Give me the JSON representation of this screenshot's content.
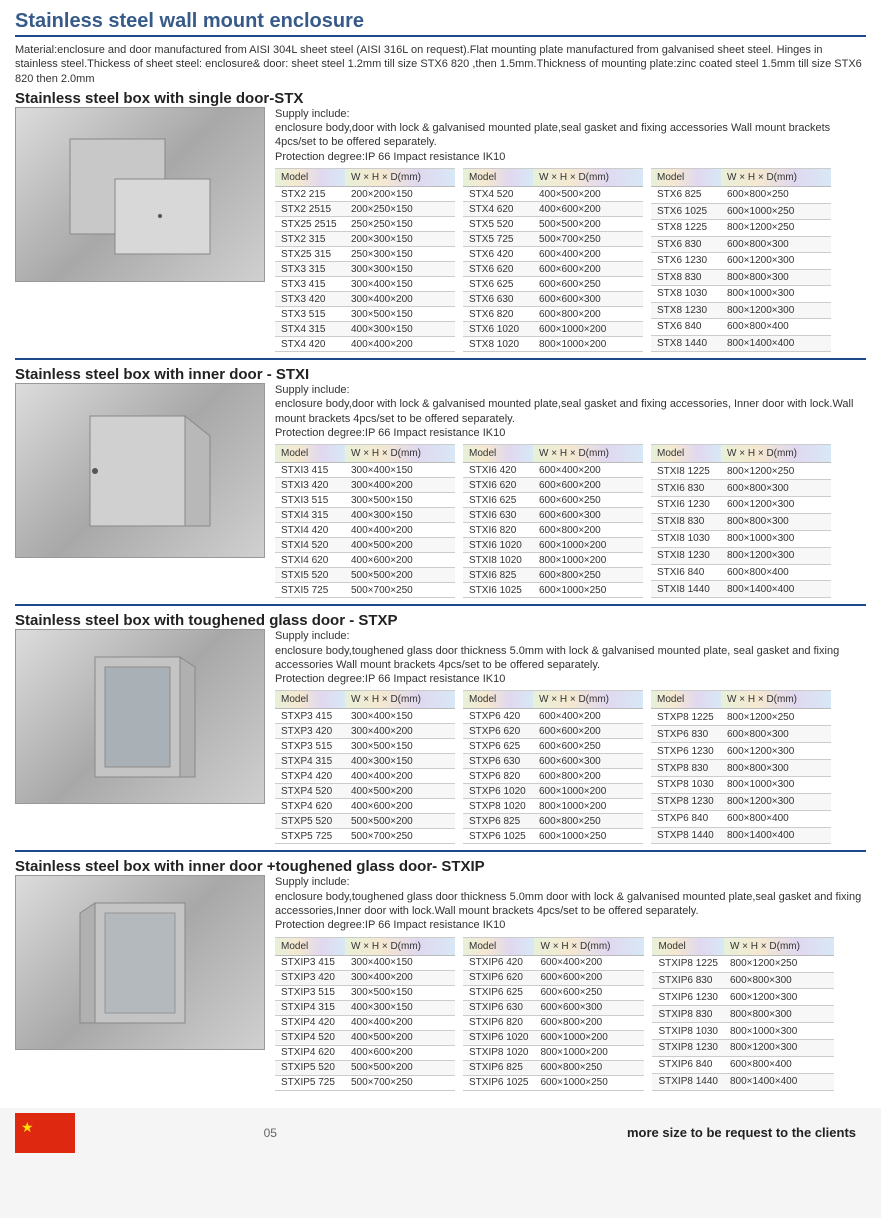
{
  "title": "Stainless steel wall mount enclosure",
  "material": "Material:enclosure and door manufactured from AISI 304L sheet steel (AISI 316L on request).Flat mounting plate manufactured from galvanised sheet  steel. Hinges in stainless steel.Thickess of sheet steel: enclosure& door: sheet steel 1.2mm till size STX6 820 ,then 1.5mm.Thickness of mounting plate:zinc coated steel 1.5mm till size STX6 820 then 2.0mm",
  "page_num": "05",
  "more_size": "more size  to be request to the clients",
  "table_headers": {
    "model": "Model",
    "dim": "W  ×  H  ×  D(mm)"
  },
  "sections": [
    {
      "title": "Stainless steel box with single door-STX",
      "supply": "Supply include:\nenclosure body,door with lock & galvanised mounted plate,seal gasket and fixing accessories Wall mount brackets 4pcs/set  to be offered separately.\nProtection degree:IP 66    Impact resistance IK10",
      "tables": [
        [
          [
            "STX2 215",
            "200×200×150"
          ],
          [
            "STX2 2515",
            "200×250×150"
          ],
          [
            "STX25 2515",
            "250×250×150"
          ],
          [
            "STX2 315",
            "200×300×150"
          ],
          [
            "STX25 315",
            "250×300×150"
          ],
          [
            "STX3 315",
            "300×300×150"
          ],
          [
            "STX3 415",
            "300×400×150"
          ],
          [
            "STX3 420",
            "300×400×200"
          ],
          [
            "STX3 515",
            "300×500×150"
          ],
          [
            "STX4 315",
            "400×300×150"
          ],
          [
            "STX4 420",
            "400×400×200"
          ]
        ],
        [
          [
            "STX4 520",
            "400×500×200"
          ],
          [
            "STX4 620",
            "400×600×200"
          ],
          [
            "STX5 520",
            "500×500×200"
          ],
          [
            "STX5 725",
            "500×700×250"
          ],
          [
            "STX6 420",
            "600×400×200"
          ],
          [
            "STX6 620",
            "600×600×200"
          ],
          [
            "STX6 625",
            "600×600×250"
          ],
          [
            "STX6 630",
            "600×600×300"
          ],
          [
            "STX6 820",
            "600×800×200"
          ],
          [
            "STX6 1020",
            "600×1000×200"
          ],
          [
            "STX8 1020",
            "800×1000×200"
          ]
        ],
        [
          [
            "STX6 825",
            "600×800×250"
          ],
          [
            "STX6 1025",
            "600×1000×250"
          ],
          [
            "STX8 1225",
            "800×1200×250"
          ],
          [
            "STX6 830",
            "600×800×300"
          ],
          [
            "STX6 1230",
            "600×1200×300"
          ],
          [
            "STX8 830",
            "800×800×300"
          ],
          [
            "STX8 1030",
            "800×1000×300"
          ],
          [
            "STX8 1230",
            "800×1200×300"
          ],
          [
            "STX6 840",
            "600×800×400"
          ],
          [
            "STX8 1440",
            "800×1400×400"
          ]
        ]
      ]
    },
    {
      "title": "Stainless steel box with inner door - STXI",
      "supply": "Supply include:\nenclosure body,door with lock & galvanised mounted plate,seal gasket and fixing accessories, Inner door with lock.Wall mount brackets 4pcs/set  to be offered separately.\nProtection degree:IP 66    Impact resistance IK10",
      "tables": [
        [
          [
            "STXI3 415",
            "300×400×150"
          ],
          [
            "STXI3 420",
            "300×400×200"
          ],
          [
            "STXI3 515",
            "300×500×150"
          ],
          [
            "STXI4 315",
            "400×300×150"
          ],
          [
            "STXI4 420",
            "400×400×200"
          ],
          [
            "STXI4 520",
            "400×500×200"
          ],
          [
            "STXI4 620",
            "400×600×200"
          ],
          [
            "STXI5 520",
            "500×500×200"
          ],
          [
            "STXI5 725",
            "500×700×250"
          ]
        ],
        [
          [
            "STXI6 420",
            "600×400×200"
          ],
          [
            "STXI6 620",
            "600×600×200"
          ],
          [
            "STXI6 625",
            "600×600×250"
          ],
          [
            "STXI6 630",
            "600×600×300"
          ],
          [
            "STXI6 820",
            "600×800×200"
          ],
          [
            "STXI6 1020",
            "600×1000×200"
          ],
          [
            "STXI8 1020",
            "800×1000×200"
          ],
          [
            "STXI6 825",
            "600×800×250"
          ],
          [
            "STXI6 1025",
            "600×1000×250"
          ]
        ],
        [
          [
            "STXI8 1225",
            "800×1200×250"
          ],
          [
            "STXI6 830",
            "600×800×300"
          ],
          [
            "STXI6 1230",
            "600×1200×300"
          ],
          [
            "STXI8 830",
            "800×800×300"
          ],
          [
            "STXI8 1030",
            "800×1000×300"
          ],
          [
            "STXI8 1230",
            "800×1200×300"
          ],
          [
            "STXI6 840",
            "600×800×400"
          ],
          [
            "STXI8 1440",
            "800×1400×400"
          ]
        ]
      ]
    },
    {
      "title": "Stainless steel box with toughened glass door - STXP",
      "supply": "Supply include:\nenclosure body,toughened glass door thickness 5.0mm with lock & galvanised mounted plate, seal gasket and fixing accessories Wall mount brackets 4pcs/set  to be offered separately.\nProtection degree:IP 66    Impact resistance IK10",
      "tables": [
        [
          [
            "STXP3 415",
            "300×400×150"
          ],
          [
            "STXP3 420",
            "300×400×200"
          ],
          [
            "STXP3 515",
            "300×500×150"
          ],
          [
            "STXP4 315",
            "400×300×150"
          ],
          [
            "STXP4 420",
            "400×400×200"
          ],
          [
            "STXP4 520",
            "400×500×200"
          ],
          [
            "STXP4 620",
            "400×600×200"
          ],
          [
            "STXP5 520",
            "500×500×200"
          ],
          [
            "STXP5 725",
            "500×700×250"
          ]
        ],
        [
          [
            "STXP6 420",
            "600×400×200"
          ],
          [
            "STXP6 620",
            "600×600×200"
          ],
          [
            "STXP6 625",
            "600×600×250"
          ],
          [
            "STXP6 630",
            "600×600×300"
          ],
          [
            "STXP6 820",
            "600×800×200"
          ],
          [
            "STXP6 1020",
            "600×1000×200"
          ],
          [
            "STXP8 1020",
            "800×1000×200"
          ],
          [
            "STXP6 825",
            "600×800×250"
          ],
          [
            "STXP6 1025",
            "600×1000×250"
          ]
        ],
        [
          [
            "STXP8 1225",
            "800×1200×250"
          ],
          [
            "STXP6 830",
            "600×800×300"
          ],
          [
            "STXP6 1230",
            "600×1200×300"
          ],
          [
            "STXP8 830",
            "800×800×300"
          ],
          [
            "STXP8 1030",
            "800×1000×300"
          ],
          [
            "STXP8 1230",
            "800×1200×300"
          ],
          [
            "STXP6 840",
            "600×800×400"
          ],
          [
            "STXP8 1440",
            "800×1400×400"
          ]
        ]
      ]
    },
    {
      "title": "Stainless steel box with inner door +toughened glass door- STXIP",
      "supply": "Supply include:\nenclosure body,toughened glass door thickness 5.0mm door with lock & galvanised mounted plate,seal gasket and fixing accessories,Inner door with lock.Wall mount brackets 4pcs/set  to be offered separately.\nProtection degree:IP 66    Impact resistance IK10",
      "tables": [
        [
          [
            "STXIP3 415",
            "300×400×150"
          ],
          [
            "STXIP3 420",
            "300×400×200"
          ],
          [
            "STXIP3 515",
            "300×500×150"
          ],
          [
            "STXIP4 315",
            "400×300×150"
          ],
          [
            "STXIP4 420",
            "400×400×200"
          ],
          [
            "STXIP4 520",
            "400×500×200"
          ],
          [
            "STXIP4 620",
            "400×600×200"
          ],
          [
            "STXIP5 520",
            "500×500×200"
          ],
          [
            "STXIP5 725",
            "500×700×250"
          ]
        ],
        [
          [
            "STXIP6 420",
            "600×400×200"
          ],
          [
            "STXIP6 620",
            "600×600×200"
          ],
          [
            "STXIP6 625",
            "600×600×250"
          ],
          [
            "STXIP6 630",
            "600×600×300"
          ],
          [
            "STXIP6 820",
            "600×800×200"
          ],
          [
            "STXIP6 1020",
            "600×1000×200"
          ],
          [
            "STXIP8 1020",
            "800×1000×200"
          ],
          [
            "STXIP6 825",
            "600×800×250"
          ],
          [
            "STXIP6 1025",
            "600×1000×250"
          ]
        ],
        [
          [
            "STXIP8 1225",
            "800×1200×250"
          ],
          [
            "STXIP6 830",
            "600×800×300"
          ],
          [
            "STXIP6 1230",
            "600×1200×300"
          ],
          [
            "STXIP8 830",
            "800×800×300"
          ],
          [
            "STXIP8 1030",
            "800×1000×300"
          ],
          [
            "STXIP8 1230",
            "800×1200×300"
          ],
          [
            "STXIP6 840",
            "600×800×400"
          ],
          [
            "STXIP8 1440",
            "800×1400×400"
          ]
        ]
      ]
    }
  ]
}
